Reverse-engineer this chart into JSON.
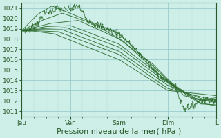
{
  "background_color": "#ceeee8",
  "grid_major_color": "#99cccc",
  "grid_minor_color": "#b8ddd8",
  "line_color": "#2d6b2d",
  "ylim": [
    1010.5,
    1021.5
  ],
  "yticks": [
    1011,
    1012,
    1013,
    1014,
    1015,
    1016,
    1017,
    1018,
    1019,
    1020,
    1021
  ],
  "xlabel": "Pression niveau de la mer( hPa )",
  "day_labels": [
    "Jeu",
    "Ven",
    "Sam",
    "Dim",
    "L"
  ],
  "day_positions": [
    0,
    24,
    48,
    72,
    96
  ],
  "total_hours": 96,
  "xlabel_fontsize": 8,
  "tick_fontsize": 6.5
}
